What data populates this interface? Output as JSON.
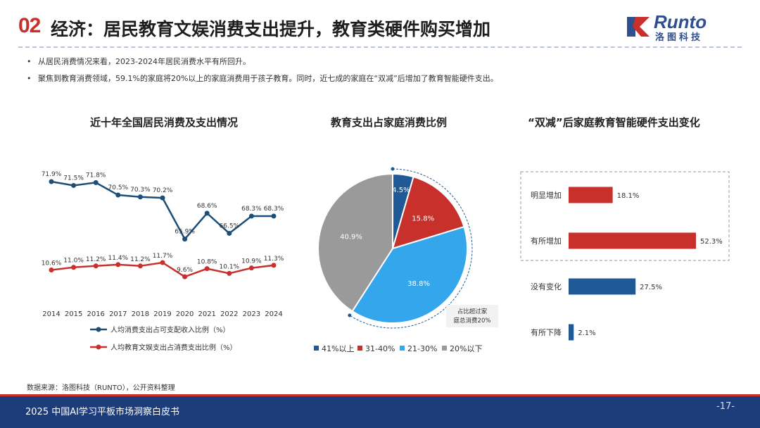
{
  "header": {
    "section_number": "02",
    "title": "经济：居民教育文娱消费支出提升，教育类硬件购买增加",
    "logo_text": "Runto",
    "logo_sub": "洛图科技"
  },
  "bullets": [
    "从居民消费情况来看，2023-2024年居民消费水平有所回升。",
    "聚焦到教育消费领域，59.1%的家庭将20%以上的家庭消费用于孩子教育。同时，近七成的家庭在“双减”后增加了教育智能硬件支出。"
  ],
  "chart_data": [
    {
      "type": "line",
      "title": "近十年全国居民消费及支出情况",
      "x": [
        "2014",
        "2015",
        "2016",
        "2017",
        "2018",
        "2019",
        "2020",
        "2021",
        "2022",
        "2023",
        "2024"
      ],
      "series": [
        {
          "name": "人均消费支出占可支配收入比例（%）",
          "color": "#1b4f7a",
          "values": [
            71.9,
            71.5,
            71.8,
            70.5,
            70.3,
            70.2,
            65.9,
            68.6,
            66.5,
            68.3,
            68.3
          ],
          "labels": [
            "71.9%",
            "71.5%",
            "71.8%",
            "70.5%",
            "70.3%",
            "70.2%",
            "65.9%",
            "68.6%",
            "66.5%",
            "68.3%",
            "68.3%"
          ]
        },
        {
          "name": "人均教育文娱支出占消费支出比例（%）",
          "color": "#c8302c",
          "values": [
            10.6,
            11.0,
            11.2,
            11.4,
            11.2,
            11.7,
            9.6,
            10.8,
            10.1,
            10.9,
            11.3
          ],
          "labels": [
            "10.6%",
            "11.0%",
            "11.2%",
            "11.4%",
            "11.2%",
            "11.7%",
            "9.6%",
            "10.8%",
            "10.1%",
            "10.9%",
            "11.3%"
          ]
        }
      ],
      "legend_position": "bottom"
    },
    {
      "type": "pie",
      "title": "教育支出占家庭消费比例",
      "categories": [
        "41%以上",
        "31-40%",
        "21-30%",
        "20%以下"
      ],
      "values": [
        4.5,
        15.8,
        38.8,
        40.9
      ],
      "labels": [
        "4.5%",
        "15.8%",
        "38.8%",
        "40.9%"
      ],
      "colors": [
        "#1f5a96",
        "#c8302c",
        "#33a6ec",
        "#9a9a9a"
      ],
      "annotation": [
        "占比超过家",
        "庭总消费20%"
      ],
      "legend_position": "bottom"
    },
    {
      "type": "bar",
      "orientation": "horizontal",
      "title": "“双减”后家庭教育智能硬件支出变化",
      "categories": [
        "明显增加",
        "有所增加",
        "没有变化",
        "有所下降"
      ],
      "values": [
        18.1,
        52.3,
        27.5,
        2.1
      ],
      "labels": [
        "18.1%",
        "52.3%",
        "27.5%",
        "2.1%"
      ],
      "colors": [
        "#c8302c",
        "#c8302c",
        "#1f5a96",
        "#1f5a96"
      ]
    }
  ],
  "source": "数据来源：洛图科技（RUNTO），公开资料整理",
  "footer": {
    "text": "2025 中国AI学习平板市场洞察白皮书",
    "page": "-17-"
  }
}
